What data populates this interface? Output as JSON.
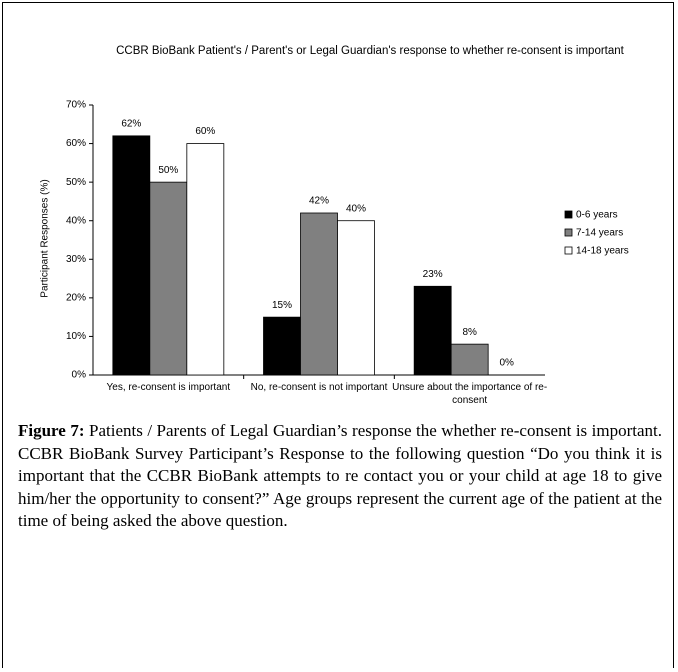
{
  "chart_data": {
    "type": "bar",
    "title": "CCBR BioBank Patient's / Parent's or Legal Guardian's response to whether re-consent is important",
    "y_label": "Participant Responses (%)",
    "categories": [
      "Yes, re-consent is important",
      "No, re-consent is not important",
      "Unsure about the importance of re-consent"
    ],
    "series": [
      {
        "name": "0-6 years",
        "color": "#000000",
        "values": [
          62,
          15,
          23
        ],
        "value_labels": [
          "62%",
          "15%",
          "23%"
        ]
      },
      {
        "name": "7-14 years",
        "color": "#808080",
        "values": [
          50,
          42,
          8
        ],
        "value_labels": [
          "50%",
          "42%",
          "8%"
        ]
      },
      {
        "name": "14-18 years",
        "color": "#ffffff",
        "values": [
          60,
          40,
          0
        ],
        "value_labels": [
          "60%",
          "40%",
          "0%"
        ]
      }
    ],
    "ylim": [
      0,
      70
    ],
    "yticks": [
      {
        "value": 0,
        "label": "0%"
      },
      {
        "value": 10,
        "label": "10%"
      },
      {
        "value": 20,
        "label": "20%"
      },
      {
        "value": 30,
        "label": "30%"
      },
      {
        "value": 40,
        "label": "40%"
      },
      {
        "value": 50,
        "label": "50%"
      },
      {
        "value": 60,
        "label": "60%"
      },
      {
        "value": 70,
        "label": "70%"
      }
    ],
    "legend": "right"
  },
  "caption": {
    "label": "Figure 7:",
    "text": "Patients / Parents of Legal Guardian’s response the whether re-consent is important. CCBR BioBank Survey Participant’s Response to the following question “Do you think it is important that the CCBR BioBank attempts to re contact you or your child at age 18 to give him/her the opportunity to consent?” Age groups represent the current age of the patient at the time of being asked the above question."
  }
}
